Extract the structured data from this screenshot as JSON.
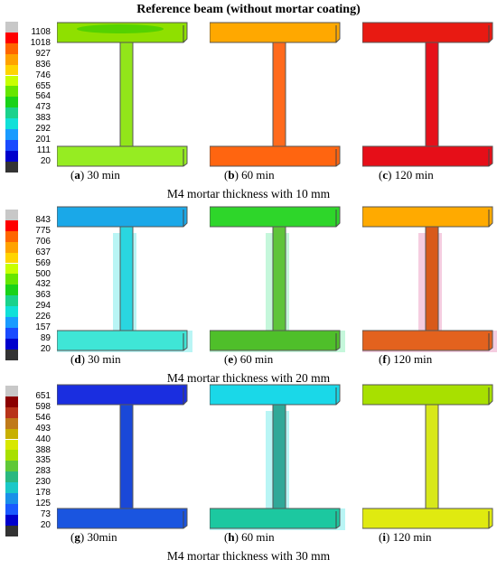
{
  "title": "Reference beam (without mortar coating)",
  "rows": [
    {
      "legend": {
        "values": [
          "1108",
          "1018",
          "927",
          "836",
          "746",
          "655",
          "564",
          "473",
          "383",
          "292",
          "201",
          "111",
          "20"
        ],
        "colors": [
          "#c8c8c8",
          "#ff0000",
          "#ff6600",
          "#ffa200",
          "#ffd400",
          "#c8ff00",
          "#66e600",
          "#19d219",
          "#1ad28c",
          "#11e0d8",
          "#1a9bff",
          "#1a4bff",
          "#0000cc",
          "#333333"
        ]
      },
      "beams": [
        {
          "label": "a",
          "text": " 30 min",
          "colors": {
            "tf": "#8fe000",
            "web": "#92e51a",
            "bf": "#96ec22",
            "hot": "#4fd000",
            "halo": ""
          }
        },
        {
          "label": "b",
          "text": " 60 min",
          "colors": {
            "tf": "#ffa800",
            "web": "#ff6a1c",
            "bf": "#ff6510",
            "hot": "",
            "halo": ""
          }
        },
        {
          "label": "c",
          "text": " 120 min",
          "colors": {
            "tf": "#e81a12",
            "web": "#e6101a",
            "bf": "#e60e18",
            "hot": "",
            "halo": ""
          }
        }
      ],
      "section_label": "M4 mortar thickness with 10 mm"
    },
    {
      "legend": {
        "values": [
          "843",
          "775",
          "706",
          "637",
          "569",
          "500",
          "432",
          "363",
          "294",
          "226",
          "157",
          "89",
          "20"
        ],
        "colors": [
          "#c8c8c8",
          "#ff0000",
          "#ff6600",
          "#ffa200",
          "#ffd400",
          "#c8ff00",
          "#66e600",
          "#19d219",
          "#1ad28c",
          "#11e0d8",
          "#1a9bff",
          "#1a4bff",
          "#0000cc",
          "#333333"
        ]
      },
      "beams": [
        {
          "label": "d",
          "text": " 30 min",
          "colors": {
            "tf": "#1aa8e8",
            "web": "#2ad6e0",
            "bf": "#3fe6d6",
            "hot": "",
            "halo": "#a8f2f2"
          }
        },
        {
          "label": "e",
          "text": " 60 min",
          "colors": {
            "tf": "#2ed62a",
            "web": "#5ec43a",
            "bf": "#4fbf2a",
            "hot": "",
            "halo": "#b6f5d2"
          }
        },
        {
          "label": "f",
          "text": " 120 min",
          "colors": {
            "tf": "#ffaa00",
            "web": "#d85a1a",
            "bf": "#e3621e",
            "hot": "",
            "halo": "#f2c0d8"
          }
        }
      ],
      "section_label": "M4 mortar thickness with 20 mm"
    },
    {
      "legend": {
        "values": [
          "651",
          "598",
          "546",
          "493",
          "440",
          "388",
          "335",
          "283",
          "230",
          "178",
          "125",
          "73",
          "20"
        ],
        "colors": [
          "#c8c8c8",
          "#8b0000",
          "#b8341a",
          "#c07a1a",
          "#c8b000",
          "#d8e800",
          "#a8e000",
          "#60c838",
          "#2ab880",
          "#1ac8c8",
          "#1a90e8",
          "#1a5aff",
          "#0000cc",
          "#333333"
        ]
      },
      "beams": [
        {
          "label": "g",
          "text": " 30min",
          "colors": {
            "tf": "#1a2ee0",
            "web": "#1a48d8",
            "bf": "#1a55e0",
            "hot": "",
            "halo": ""
          }
        },
        {
          "label": "h",
          "text": " 60 min",
          "colors": {
            "tf": "#1ad8e8",
            "web": "#30a898",
            "bf": "#1cc8a0",
            "hot": "",
            "halo": "#a8f2f2"
          }
        },
        {
          "label": "i",
          "text": " 120 min",
          "colors": {
            "tf": "#a8e000",
            "web": "#d8e81a",
            "bf": "#e0ea10",
            "hot": "",
            "halo": ""
          }
        }
      ],
      "section_label": "M4 mortar thickness with 30 mm"
    }
  ]
}
